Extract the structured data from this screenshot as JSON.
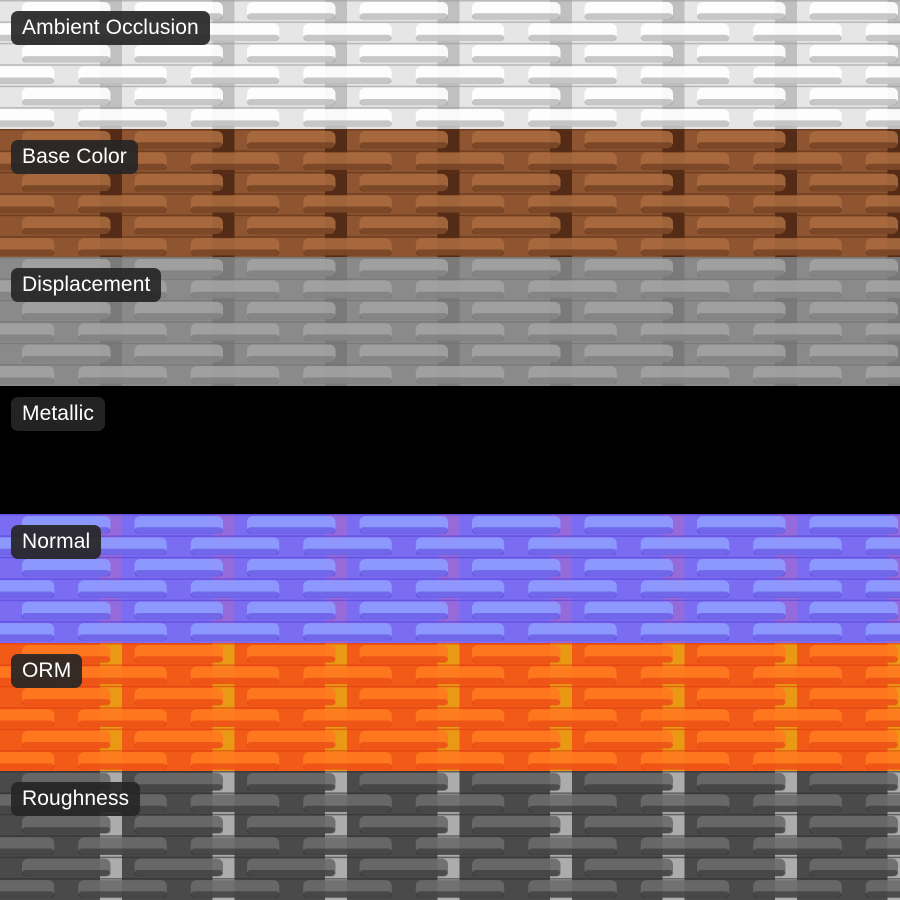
{
  "panels": [
    {
      "label": "Ambient Occlusion",
      "map": "ao",
      "colors": {
        "base": "#e6e6e6",
        "hi": "#ffffff",
        "shade": "#9a9a9a",
        "gap": "#b8b8b8"
      }
    },
    {
      "label": "Base Color",
      "map": "basecolor",
      "colors": {
        "base": "#8e5530",
        "hi": "#a86a3e",
        "shade": "#5a2e17",
        "gap": "#4a2412"
      }
    },
    {
      "label": "Displacement",
      "map": "displacement",
      "colors": {
        "base": "#8a8a8a",
        "hi": "#a2a2a2",
        "shade": "#6f6f6f",
        "gap": "#777777"
      }
    },
    {
      "label": "Metallic",
      "map": "metallic",
      "colors": {
        "base": "#000000",
        "hi": "#000000",
        "shade": "#000000",
        "gap": "#000000"
      }
    },
    {
      "label": "Normal",
      "map": "normal",
      "colors": {
        "base": "#7a6df2",
        "hi": "#8e9cff",
        "shade": "#5a3fd8",
        "gap": "#9a6bd8"
      }
    },
    {
      "label": "ORM",
      "map": "orm",
      "colors": {
        "base": "#f15a17",
        "hi": "#ff7a1f",
        "shade": "#e03a10",
        "gap": "#e8a414"
      }
    },
    {
      "label": "Roughness",
      "map": "roughness",
      "colors": {
        "base": "#4a4a4a",
        "hi": "#6a6a6a",
        "shade": "#2e2e2e",
        "gap": "#bdbdbd"
      }
    }
  ]
}
